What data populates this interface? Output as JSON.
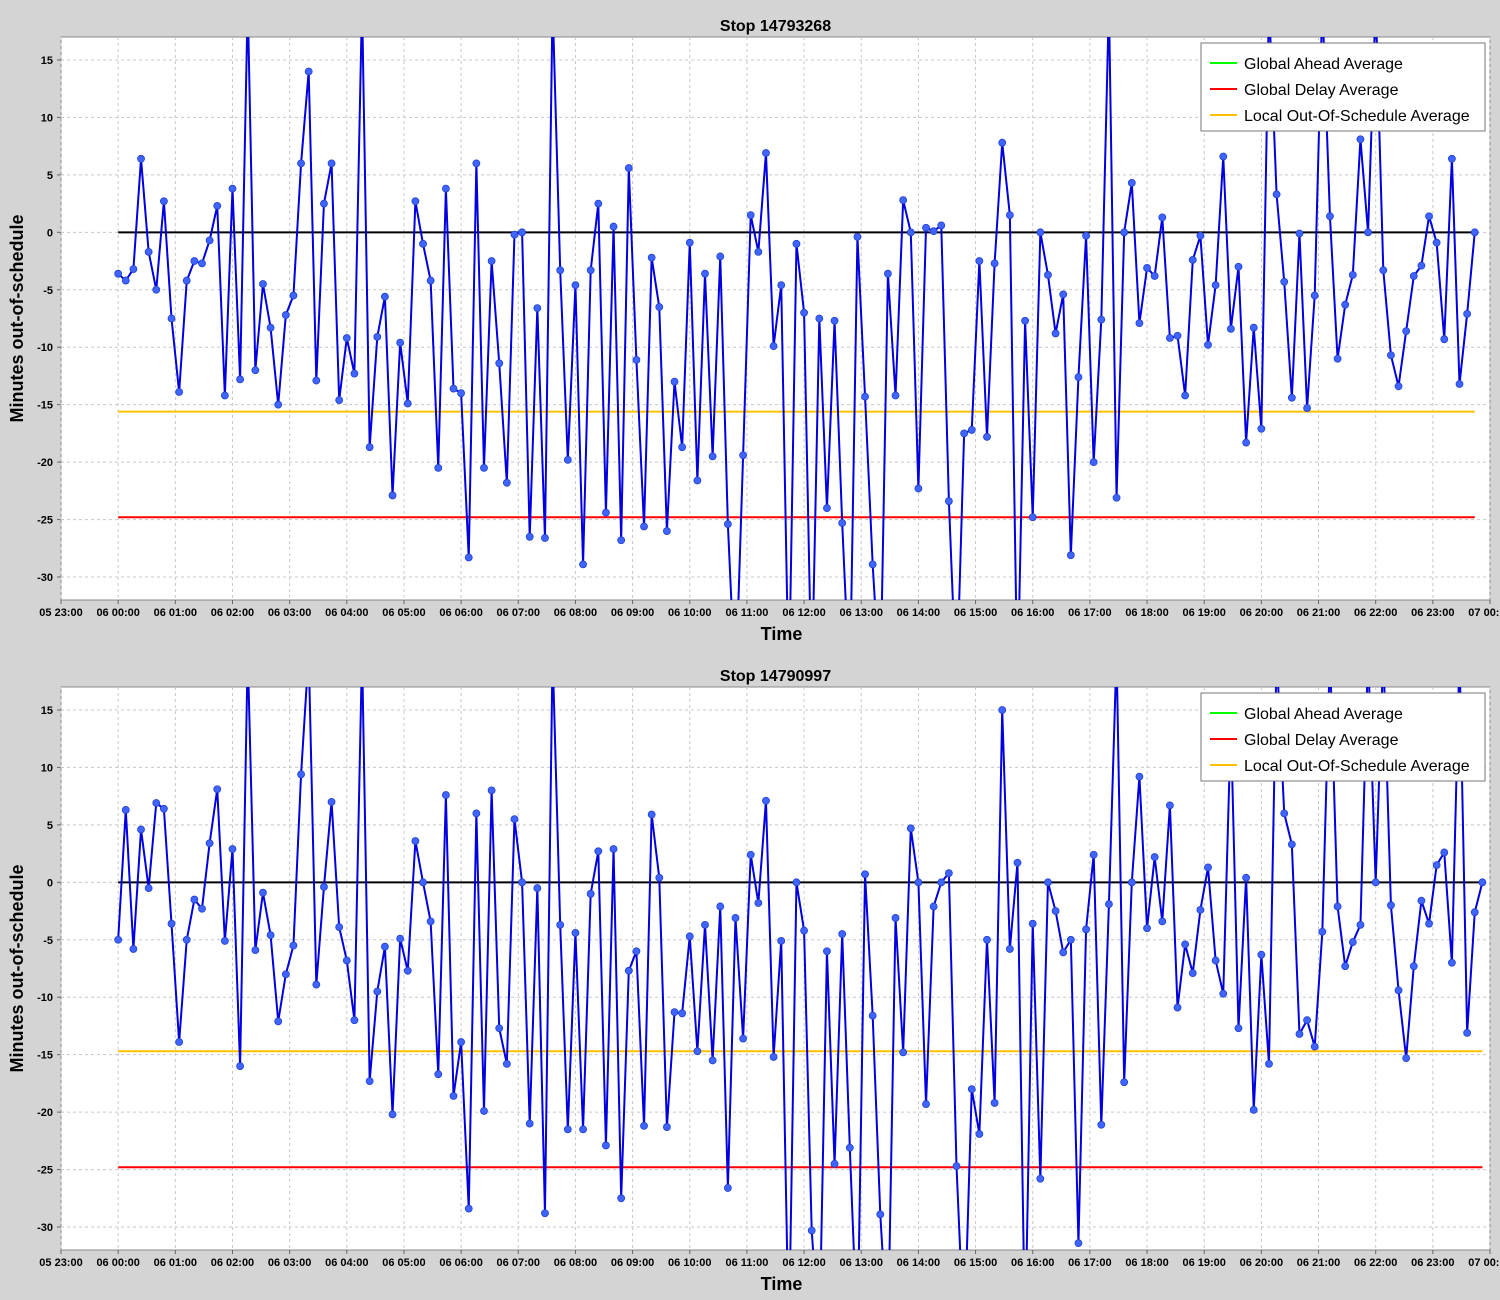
{
  "chart_data": [
    {
      "type": "line",
      "title": "Stop 14793268",
      "xlabel": "Time",
      "ylabel": "Minutes out-of-schedule",
      "xlim": [
        "05 23:00",
        "07 00:00"
      ],
      "ylim": [
        -32,
        17
      ],
      "y_ticks": [
        15,
        10,
        5,
        0,
        -5,
        -10,
        -15,
        -20,
        -25,
        -30
      ],
      "x_tick_labels": [
        "05 23:00",
        "06 00:00",
        "06 01:00",
        "06 02:00",
        "06 03:00",
        "06 04:00",
        "06 05:00",
        "06 06:00",
        "06 07:00",
        "06 08:00",
        "06 09:00",
        "06 10:00",
        "06 11:00",
        "06 12:00",
        "06 13:00",
        "06 14:00",
        "06 15:00",
        "06 16:00",
        "06 17:00",
        "06 18:00",
        "06 19:00",
        "06 20:00",
        "06 21:00",
        "06 22:00",
        "06 23:00",
        "07 00:00"
      ],
      "grid": true,
      "legend_position": "top-right",
      "legend": [
        {
          "label": "Global Ahead Average",
          "color": "#00ff00"
        },
        {
          "label": "Global Delay Average",
          "color": "#ff0000"
        },
        {
          "label": "Local Out-Of-Schedule Average",
          "color": "#ffc000"
        }
      ],
      "reference_lines": [
        {
          "value": 0,
          "color": "#000000"
        },
        {
          "value": -15.6,
          "color": "#ffc000"
        },
        {
          "value": -24.8,
          "color": "#ff0000"
        }
      ],
      "series_color": "#0000e0",
      "x_start": "06 00:00",
      "x_step_minutes": 8,
      "values": [
        -3.6,
        -4.2,
        -3.2,
        6.4,
        -1.7,
        -5.0,
        2.7,
        -7.5,
        -13.9,
        -4.2,
        -2.5,
        -2.7,
        -0.7,
        2.3,
        -14.2,
        3.8,
        -12.8,
        20,
        -12.0,
        -4.5,
        -8.3,
        -15.0,
        -7.2,
        -5.5,
        6.0,
        14.0,
        -12.9,
        2.5,
        6.0,
        -14.6,
        -9.2,
        -12.3,
        20,
        -18.7,
        -9.1,
        -5.6,
        -22.9,
        -9.6,
        -14.9,
        2.7,
        -1.0,
        -4.2,
        -20.5,
        3.8,
        -13.6,
        -14.0,
        -28.3,
        6.0,
        -20.5,
        -2.5,
        -11.4,
        -21.8,
        -0.2,
        0.0,
        -26.5,
        -6.6,
        -26.6,
        20,
        -3.3,
        -19.8,
        -4.6,
        -28.9,
        -3.3,
        2.5,
        -24.4,
        0.5,
        -26.8,
        5.6,
        -11.1,
        -25.6,
        -2.2,
        -6.5,
        -26.0,
        -13.0,
        -18.7,
        -0.9,
        -21.6,
        -3.6,
        -19.5,
        -2.1,
        -25.4,
        -40,
        -19.4,
        1.5,
        -1.7,
        6.9,
        -9.9,
        -4.6,
        -40,
        -1.0,
        -7.0,
        -40,
        -7.5,
        -24.0,
        -7.7,
        -25.3,
        -40,
        -0.4,
        -14.3,
        -28.9,
        -40,
        -3.6,
        -14.2,
        2.8,
        0.0,
        -22.3,
        0.4,
        0.1,
        0.6,
        -23.4,
        -40,
        -17.5,
        -17.2,
        -2.5,
        -17.8,
        -2.7,
        7.8,
        1.5,
        -40,
        -7.7,
        -24.8,
        0.0,
        -3.7,
        -8.8,
        -5.4,
        -28.1,
        -12.6,
        -0.3,
        -20.0,
        -7.6,
        20,
        -23.1,
        0.0,
        4.3,
        -7.9,
        -3.1,
        -3.8,
        1.3,
        -9.2,
        -9.0,
        -14.2,
        -2.4,
        -0.3,
        -9.8,
        -4.6,
        6.6,
        -8.4,
        -3.0,
        -18.3,
        -8.3,
        -17.1,
        20,
        3.3,
        -4.3,
        -14.4,
        -0.1,
        -15.3,
        -5.5,
        20,
        1.4,
        -11.0,
        -6.3,
        -3.7,
        8.1,
        0.0,
        20,
        -3.3,
        -10.7,
        -13.4,
        -8.6,
        -3.8,
        -2.9,
        1.4,
        -0.9,
        -9.3,
        6.4,
        -13.2,
        -7.1,
        0.0
      ]
    },
    {
      "type": "line",
      "title": "Stop 14790997",
      "xlabel": "Time",
      "ylabel": "Minutes out-of-schedule",
      "xlim": [
        "05 23:00",
        "07 00:00"
      ],
      "ylim": [
        -32,
        17
      ],
      "y_ticks": [
        15,
        10,
        5,
        0,
        -5,
        -10,
        -15,
        -20,
        -25,
        -30
      ],
      "x_tick_labels": [
        "05 23:00",
        "06 00:00",
        "06 01:00",
        "06 02:00",
        "06 03:00",
        "06 04:00",
        "06 05:00",
        "06 06:00",
        "06 07:00",
        "06 08:00",
        "06 09:00",
        "06 10:00",
        "06 11:00",
        "06 12:00",
        "06 13:00",
        "06 14:00",
        "06 15:00",
        "06 16:00",
        "06 17:00",
        "06 18:00",
        "06 19:00",
        "06 20:00",
        "06 21:00",
        "06 22:00",
        "06 23:00",
        "07 00:00"
      ],
      "grid": true,
      "legend_position": "top-right",
      "legend": [
        {
          "label": "Global Ahead Average",
          "color": "#00ff00"
        },
        {
          "label": "Global Delay Average",
          "color": "#ff0000"
        },
        {
          "label": "Local Out-Of-Schedule Average",
          "color": "#ffc000"
        }
      ],
      "reference_lines": [
        {
          "value": 0,
          "color": "#000000"
        },
        {
          "value": -14.7,
          "color": "#ffc000"
        },
        {
          "value": -24.8,
          "color": "#ff0000"
        }
      ],
      "series_color": "#0000e0",
      "x_start": "06 00:00",
      "x_step_minutes": 8,
      "values": [
        -5.0,
        6.3,
        -5.8,
        4.6,
        -0.5,
        6.9,
        6.4,
        -3.6,
        -13.9,
        -5.0,
        -1.5,
        -2.3,
        3.4,
        8.1,
        -5.1,
        2.9,
        -16.0,
        20,
        -5.9,
        -0.9,
        -4.6,
        -12.1,
        -8.0,
        -5.5,
        9.4,
        20,
        -8.9,
        -0.4,
        7.0,
        -3.9,
        -6.8,
        -12.0,
        20,
        -17.3,
        -9.5,
        -5.6,
        -20.2,
        -4.9,
        -7.7,
        3.6,
        0.0,
        -3.4,
        -16.7,
        7.6,
        -18.6,
        -13.9,
        -28.4,
        6.0,
        -19.9,
        8.0,
        -12.7,
        -15.8,
        5.5,
        0.0,
        -21.0,
        -0.5,
        -28.8,
        20,
        -3.7,
        -21.5,
        -4.4,
        -21.5,
        -1.0,
        2.7,
        -22.9,
        2.9,
        -27.5,
        -7.7,
        -6.0,
        -21.2,
        5.9,
        0.4,
        -21.3,
        -11.3,
        -11.4,
        -4.7,
        -14.7,
        -3.7,
        -15.5,
        -2.1,
        -26.6,
        -3.1,
        -13.6,
        2.4,
        -1.8,
        7.1,
        -15.2,
        -5.1,
        -40,
        0.0,
        -4.2,
        -30.3,
        -40,
        -6.0,
        -24.5,
        -4.5,
        -23.1,
        -40,
        0.7,
        -11.6,
        -28.9,
        -40,
        -3.1,
        -14.8,
        4.7,
        0.0,
        -19.3,
        -2.1,
        0.0,
        0.8,
        -24.7,
        -40,
        -18.0,
        -21.9,
        -5.0,
        -19.2,
        15.0,
        -5.8,
        1.7,
        -40,
        -3.6,
        -25.8,
        0.0,
        -2.5,
        -6.1,
        -5.0,
        -31.4,
        -4.1,
        2.4,
        -21.1,
        -1.9,
        20,
        -17.4,
        0.0,
        9.2,
        -4.0,
        2.2,
        -3.4,
        6.7,
        -10.9,
        -5.4,
        -7.9,
        -2.4,
        1.3,
        -6.8,
        -9.7,
        13.9,
        -12.7,
        0.4,
        -19.8,
        -6.3,
        -15.8,
        20,
        6.0,
        3.3,
        -13.2,
        -12.0,
        -14.3,
        -4.3,
        20,
        -2.1,
        -7.3,
        -5.2,
        -3.7,
        20,
        0.0,
        20,
        -2.0,
        -9.4,
        -15.3,
        -7.3,
        -1.6,
        -3.6,
        1.5,
        2.6,
        -7.0,
        20,
        -13.1,
        -2.6,
        0.0
      ]
    }
  ]
}
